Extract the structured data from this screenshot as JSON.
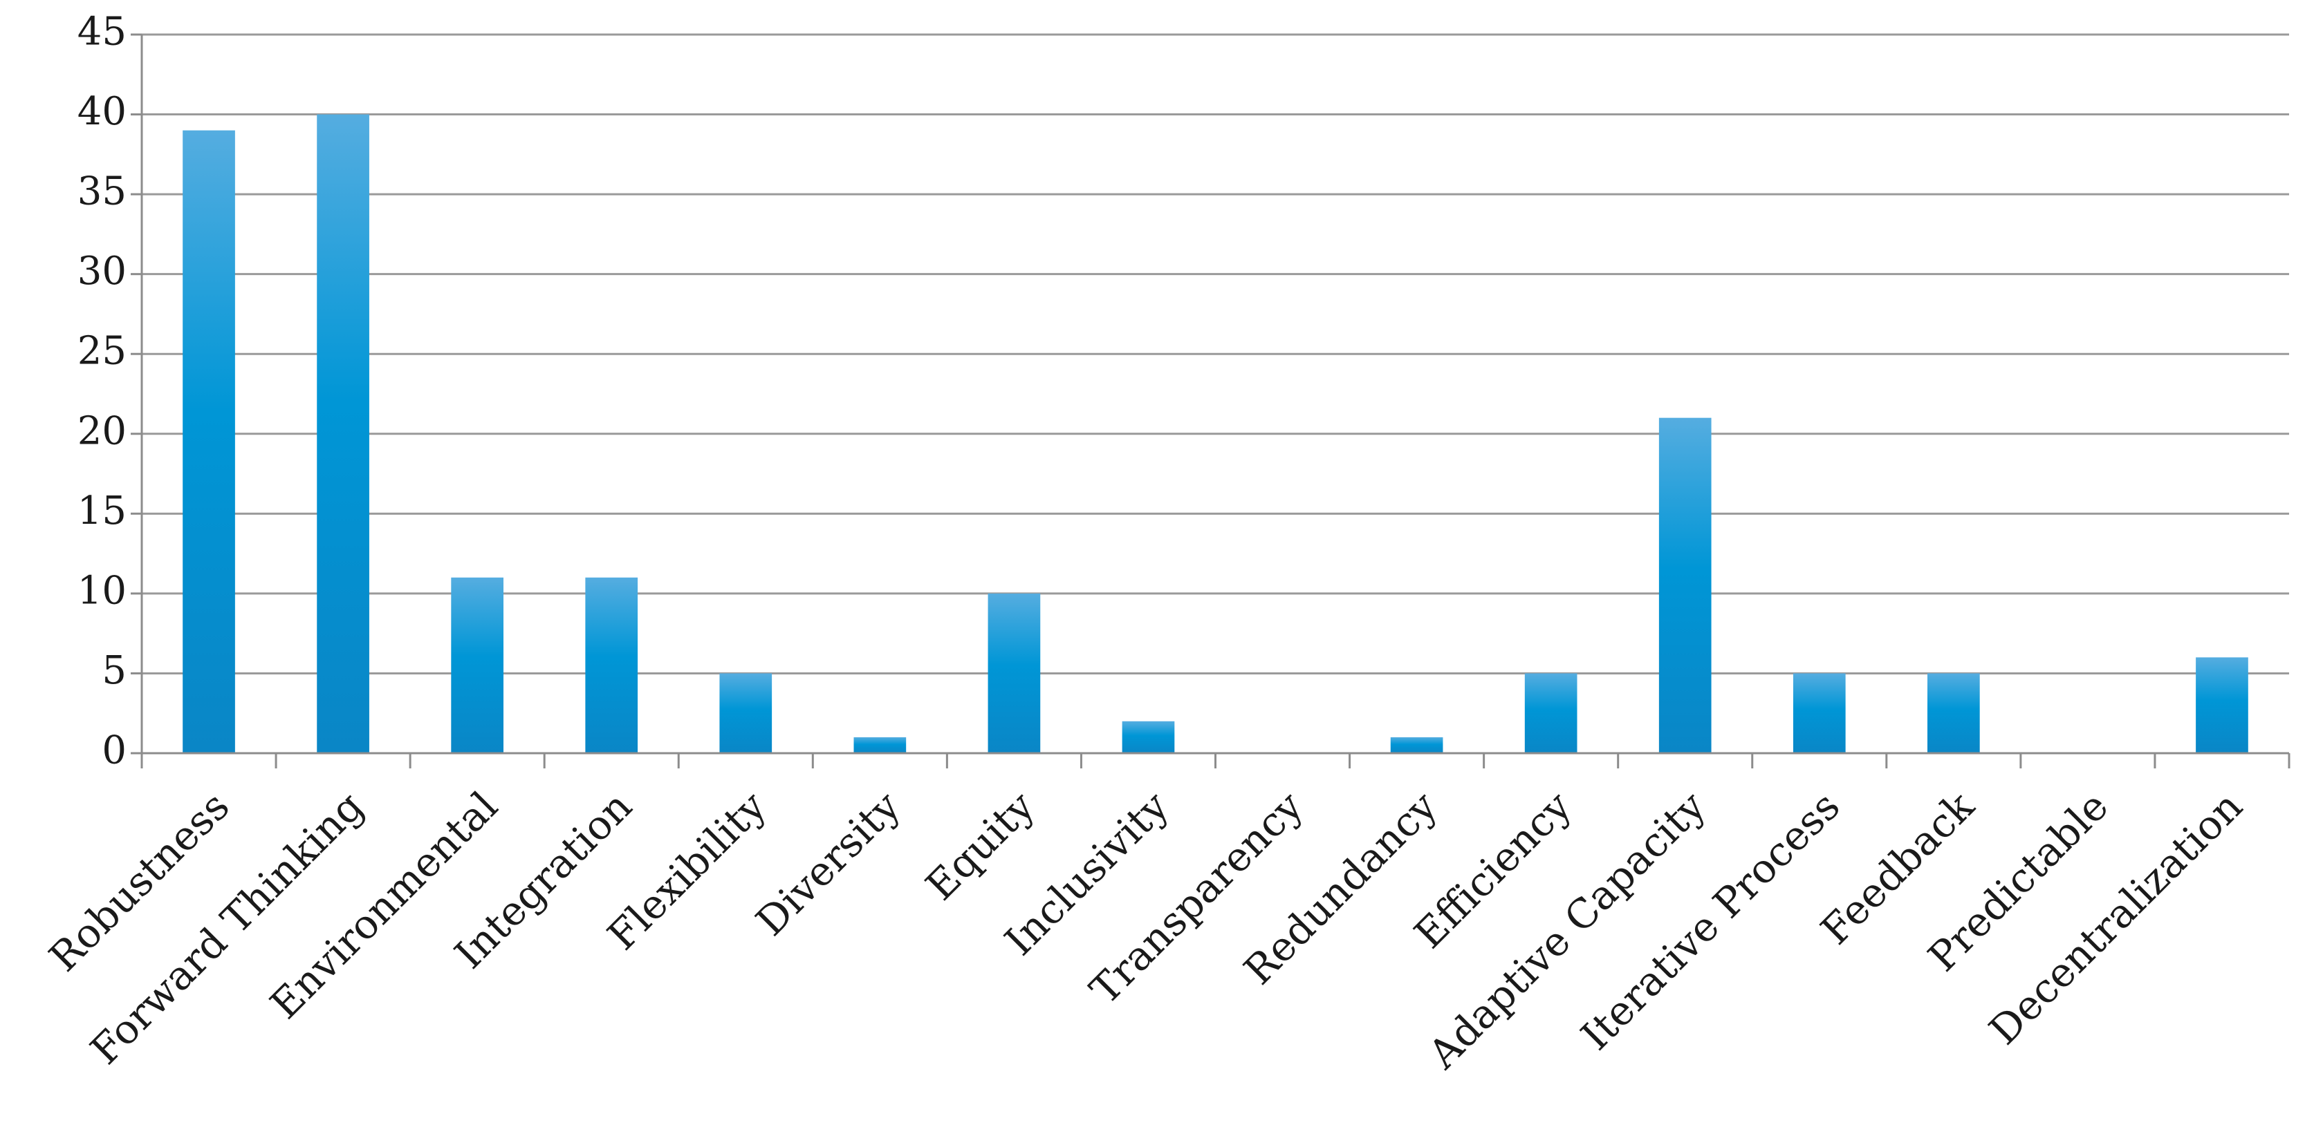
{
  "chart_data": {
    "type": "bar",
    "title": "",
    "xlabel": "",
    "ylabel": "",
    "ylim": [
      0,
      45
    ],
    "yticks": [
      0,
      5,
      10,
      15,
      20,
      25,
      30,
      35,
      40,
      45
    ],
    "grid": true,
    "legend": "none",
    "categories": [
      "Robustness",
      "Forward Thinking",
      "Environmental",
      "Integration",
      "Flexibility",
      "Diversity",
      "Equity",
      "Inclusivity",
      "Transparency",
      "Redundancy",
      "Efficiency",
      "Adaptive Capacity",
      "Iterative Process",
      "Feedback",
      "Predictable",
      "Decentralization"
    ],
    "values": [
      39,
      40,
      11,
      11,
      5,
      1,
      10,
      2,
      0,
      1,
      5,
      21,
      5,
      5,
      0,
      6
    ]
  },
  "colors": {
    "bar_top": "#55ade0",
    "bar_mid": "#0096d6",
    "bar_bottom": "#0a86c6",
    "grid": "#9a9a9a",
    "axis": "#8c8c8c",
    "text": "#1a1a1a"
  }
}
